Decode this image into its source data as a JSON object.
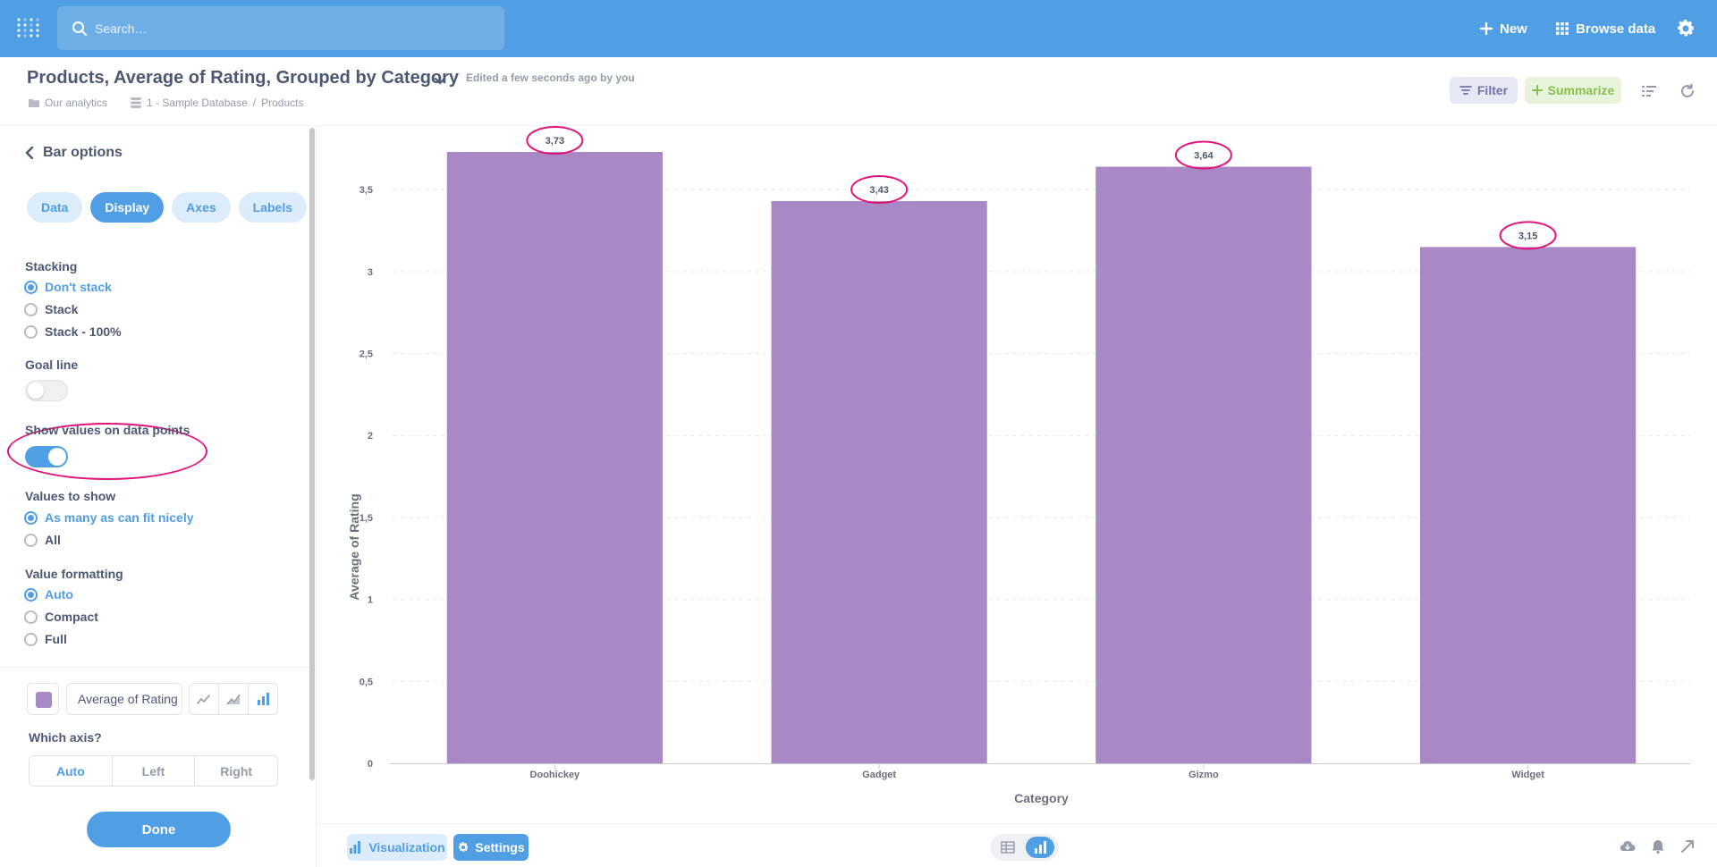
{
  "nav": {
    "search_placeholder": "Search…",
    "new_label": "New",
    "browse_label": "Browse data"
  },
  "header": {
    "title": "Products, Average of Rating, Grouped by Category",
    "edited": "Edited a few seconds ago by you",
    "breadcrumb_collection": "Our analytics",
    "breadcrumb_database": "1 - Sample Database",
    "breadcrumb_sep": "/",
    "breadcrumb_table": "Products",
    "filter_label": "Filter",
    "summarize_label": "Summarize"
  },
  "sidebar": {
    "back_label": "Bar options",
    "tabs": [
      "Data",
      "Display",
      "Axes",
      "Labels"
    ],
    "active_tab": "Display",
    "stacking_label": "Stacking",
    "stacking_options": [
      "Don't stack",
      "Stack",
      "Stack - 100%"
    ],
    "goal_line_label": "Goal line",
    "show_values_label": "Show values on data points",
    "values_to_show_label": "Values to show",
    "values_to_show_options": [
      "As many as can fit nicely",
      "All"
    ],
    "value_formatting_label": "Value formatting",
    "value_formatting_options": [
      "Auto",
      "Compact",
      "Full"
    ],
    "series_name": "Average of Rating",
    "series_color": "#a989c5",
    "which_axis_label": "Which axis?",
    "axis_options": [
      "Auto",
      "Left",
      "Right"
    ],
    "done_label": "Done"
  },
  "footer": {
    "visualization_label": "Visualization",
    "settings_label": "Settings"
  },
  "colors": {
    "brand": "#509ee3",
    "bar": "#a989c5",
    "annotation": "#e0147a"
  },
  "chart_data": {
    "type": "bar",
    "categories": [
      "Doohickey",
      "Gadget",
      "Gizmo",
      "Widget"
    ],
    "values": [
      3.73,
      3.43,
      3.64,
      3.15
    ],
    "value_labels": [
      "3,73",
      "3,43",
      "3,64",
      "3,15"
    ],
    "xlabel": "Category",
    "ylabel": "Average of Rating",
    "ylim": [
      0,
      3.73
    ],
    "yticks": [
      0,
      0.5,
      1,
      1.5,
      2,
      2.5,
      3,
      3.5
    ],
    "ytick_labels": [
      "0",
      "0,5",
      "1",
      "1,5",
      "2",
      "2,5",
      "3",
      "3,5"
    ],
    "grid": true
  }
}
